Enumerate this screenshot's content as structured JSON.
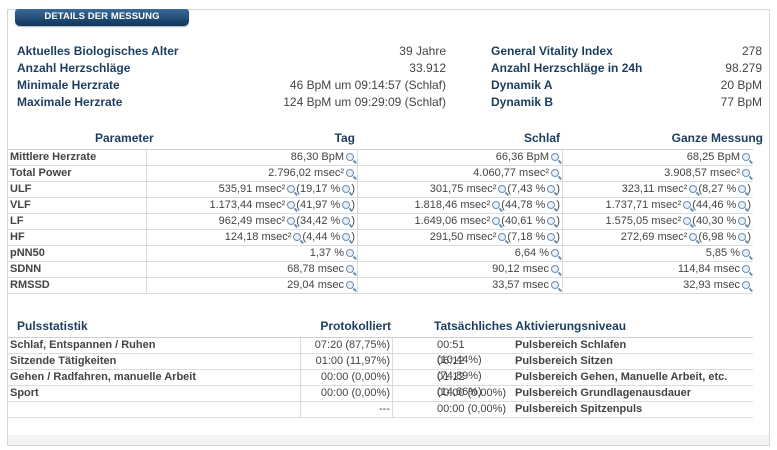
{
  "header": {
    "title": "DETAILS DER MESSUNG"
  },
  "summary_left": [
    {
      "label": "Aktuelles Biologisches Alter",
      "value": "39 Jahre"
    },
    {
      "label": "Anzahl Herzschläge",
      "value": "33.912"
    },
    {
      "label": "Minimale Herzrate",
      "value": "46 BpM um 09:14:57 (Schlaf)"
    },
    {
      "label": "Maximale Herzrate",
      "value": "124 BpM um 09:29:09 (Schlaf)"
    }
  ],
  "summary_right": [
    {
      "label": "General Vitality Index",
      "value": "278"
    },
    {
      "label": "Anzahl Herzschläge in 24h",
      "value": "98.279"
    },
    {
      "label": "Dynamik A",
      "value": "20 BpM"
    },
    {
      "label": "Dynamik B",
      "value": "77 BpM"
    }
  ],
  "params": {
    "headers": {
      "param": "Parameter",
      "day": "Tag",
      "sleep": "Schlaf",
      "total": "Ganze Messung"
    },
    "rows": [
      {
        "label": "Mittlere Herzrate",
        "day": [
          "86,30 BpM"
        ],
        "sleep": [
          "66,36 BpM"
        ],
        "total": [
          "68,25 BpM"
        ]
      },
      {
        "label": "Total Power",
        "day": [
          "2.796,02 msec²"
        ],
        "sleep": [
          "4.060,77 msec²"
        ],
        "total": [
          "3.908,57 msec²"
        ]
      },
      {
        "label": "ULF",
        "day": [
          "535,91 msec²",
          "(19,17 %"
        ],
        "sleep": [
          "301,75 msec²",
          "(7,43 %"
        ],
        "total": [
          "323,11 msec²",
          "(8,27 %"
        ]
      },
      {
        "label": "VLF",
        "day": [
          "1.173,44 msec²",
          "(41,97 %"
        ],
        "sleep": [
          "1.818,46 msec²",
          "(44,78 %"
        ],
        "total": [
          "1.737,71 msec²",
          "(44,46 %"
        ]
      },
      {
        "label": "LF",
        "day": [
          "962,49 msec²",
          "(34,42 %"
        ],
        "sleep": [
          "1.649,06 msec²",
          "(40,61 %"
        ],
        "total": [
          "1.575,05 msec²",
          "(40,30 %"
        ]
      },
      {
        "label": "HF",
        "day": [
          "124,18 msec²",
          "(4,44 %"
        ],
        "sleep": [
          "291,50 msec²",
          "(7,18 %"
        ],
        "total": [
          "272,69 msec²",
          "(6,98 %"
        ]
      },
      {
        "label": "pNN50",
        "day": [
          "1,37 %"
        ],
        "sleep": [
          "6,64 %"
        ],
        "total": [
          "5,85 %"
        ]
      },
      {
        "label": "SDNN",
        "day": [
          "68,78 msec"
        ],
        "sleep": [
          "90,12 msec"
        ],
        "total": [
          "114,84 msec"
        ]
      },
      {
        "label": "RMSSD",
        "day": [
          "29,04 msec"
        ],
        "sleep": [
          "33,57 msec"
        ],
        "total": [
          "32,93 msec"
        ]
      }
    ]
  },
  "pulse": {
    "headers": {
      "stat": "Pulsstatistik",
      "logged": "Protokolliert",
      "actual": "Tatsächliches Aktivierungsniveau"
    },
    "rows": [
      {
        "label": "Schlaf, Entspannen / Ruhen",
        "logged": "07:20 (87,75%)",
        "actual": "00:51 (10,44%)",
        "zone": "Pulsbereich Schlafen"
      },
      {
        "label": "Sitzende Tätigkeiten",
        "logged": "01:00 (11,97%)",
        "actual": "06:12 (74,89%)",
        "zone": "Pulsbereich Sitzen"
      },
      {
        "label": "Gehen / Radfahren, manuelle Arbeit",
        "logged": "00:00 (0,00%)",
        "actual": "01:12 (14,66%)",
        "zone": "Pulsbereich Gehen, Manuelle Arbeit, etc."
      },
      {
        "label": "Sport",
        "logged": "00:00 (0,00%)",
        "actual": "00:00 (0,00%)",
        "zone": "Pulsbereich Grundlagenausdauer"
      },
      {
        "label": "",
        "logged": "---",
        "actual": "00:00 (0,00%)",
        "zone": "Pulsbereich Spitzenpuls"
      }
    ]
  }
}
